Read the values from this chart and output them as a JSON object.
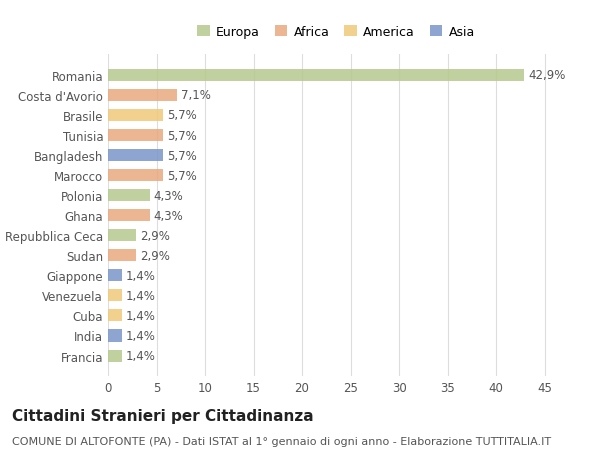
{
  "countries": [
    "Romania",
    "Costa d'Avorio",
    "Brasile",
    "Tunisia",
    "Bangladesh",
    "Marocco",
    "Polonia",
    "Ghana",
    "Repubblica Ceca",
    "Sudan",
    "Giappone",
    "Venezuela",
    "Cuba",
    "India",
    "Francia"
  ],
  "values": [
    42.9,
    7.1,
    5.7,
    5.7,
    5.7,
    5.7,
    4.3,
    4.3,
    2.9,
    2.9,
    1.4,
    1.4,
    1.4,
    1.4,
    1.4
  ],
  "labels": [
    "42,9%",
    "7,1%",
    "5,7%",
    "5,7%",
    "5,7%",
    "5,7%",
    "4,3%",
    "4,3%",
    "2,9%",
    "2,9%",
    "1,4%",
    "1,4%",
    "1,4%",
    "1,4%",
    "1,4%"
  ],
  "colors": [
    "#b5c98e",
    "#e8a97e",
    "#f0c97a",
    "#e8a97e",
    "#7b96c9",
    "#e8a97e",
    "#b5c98e",
    "#e8a97e",
    "#b5c98e",
    "#e8a97e",
    "#7b96c9",
    "#f0c97a",
    "#f0c97a",
    "#7b96c9",
    "#b5c98e"
  ],
  "legend_labels": [
    "Europa",
    "Africa",
    "America",
    "Asia"
  ],
  "legend_colors": [
    "#b5c98e",
    "#e8a97e",
    "#f0c97a",
    "#7b96c9"
  ],
  "title": "Cittadini Stranieri per Cittadinanza",
  "subtitle": "COMUNE DI ALTOFONTE (PA) - Dati ISTAT al 1° gennaio di ogni anno - Elaborazione TUTTITALIA.IT",
  "xlim": [
    0,
    47
  ],
  "xticks": [
    0,
    5,
    10,
    15,
    20,
    25,
    30,
    35,
    40,
    45
  ],
  "background_color": "#ffffff",
  "grid_color": "#dddddd",
  "bar_height": 0.6,
  "label_fontsize": 8.5,
  "title_fontsize": 11,
  "subtitle_fontsize": 8,
  "tick_fontsize": 8.5,
  "legend_fontsize": 9
}
